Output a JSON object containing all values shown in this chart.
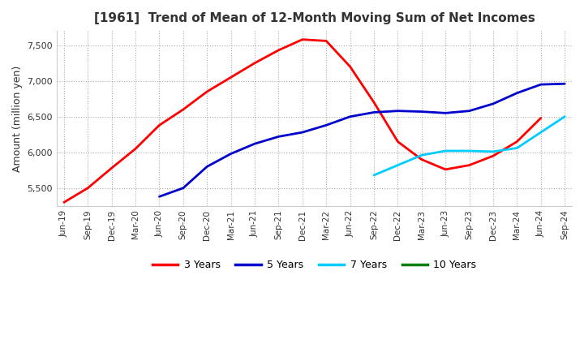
{
  "title": "[1961]  Trend of Mean of 12-Month Moving Sum of Net Incomes",
  "ylabel": "Amount (million yen)",
  "background_color": "#ffffff",
  "grid_color": "#aaaaaa",
  "ylim": [
    5250,
    7700
  ],
  "yticks": [
    5500,
    6000,
    6500,
    7000,
    7500
  ],
  "x_labels": [
    "Jun-19",
    "Sep-19",
    "Dec-19",
    "Mar-20",
    "Jun-20",
    "Sep-20",
    "Dec-20",
    "Mar-21",
    "Jun-21",
    "Sep-21",
    "Dec-21",
    "Mar-22",
    "Jun-22",
    "Sep-22",
    "Dec-22",
    "Mar-23",
    "Jun-23",
    "Sep-23",
    "Dec-23",
    "Mar-24",
    "Jun-24",
    "Sep-24"
  ],
  "series": {
    "3 Years": {
      "color": "#ff0000",
      "data": [
        5300,
        5500,
        5780,
        6050,
        6380,
        6600,
        6850,
        7050,
        7250,
        7430,
        7580,
        7560,
        7200,
        6700,
        6150,
        5900,
        5760,
        5820,
        5950,
        6150,
        6480,
        null
      ]
    },
    "5 Years": {
      "color": "#0000cc",
      "data": [
        null,
        null,
        null,
        null,
        5380,
        5500,
        5800,
        5980,
        6120,
        6220,
        6280,
        6380,
        6500,
        6560,
        6580,
        6570,
        6550,
        6580,
        6680,
        6830,
        6950,
        6960
      ]
    },
    "7 Years": {
      "color": "#00ccff",
      "data": [
        null,
        null,
        null,
        null,
        null,
        null,
        null,
        null,
        null,
        null,
        null,
        null,
        null,
        5680,
        5820,
        5960,
        6020,
        6020,
        6010,
        6060,
        6280,
        6500
      ]
    },
    "10 Years": {
      "color": "#008000",
      "data": [
        null,
        null,
        null,
        null,
        null,
        null,
        null,
        null,
        null,
        null,
        null,
        null,
        null,
        null,
        null,
        null,
        null,
        null,
        null,
        null,
        null,
        null
      ]
    }
  },
  "legend_order": [
    "3 Years",
    "5 Years",
    "7 Years",
    "10 Years"
  ]
}
